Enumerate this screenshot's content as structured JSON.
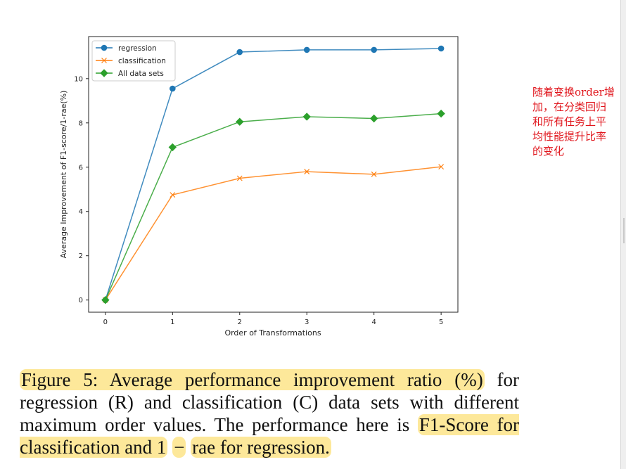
{
  "chart_data": {
    "type": "line",
    "x": [
      0,
      1,
      2,
      3,
      4,
      5
    ],
    "xticks": [
      "0",
      "1",
      "2",
      "3",
      "4",
      "5"
    ],
    "yticks": [
      "0",
      "2",
      "4",
      "6",
      "8",
      "10"
    ],
    "xlabel": "Order of Transformations",
    "ylabel": "Average Improvement of F1-score/1-rae(%)",
    "xlim": [
      -0.25,
      5.25
    ],
    "ylim": [
      -0.55,
      11.9
    ],
    "legend_position": "upper-left",
    "grid": false,
    "series": [
      {
        "name": "regression",
        "color": "#1f77b4",
        "marker": "circle",
        "values": [
          0,
          9.55,
          11.2,
          11.3,
          11.3,
          11.36
        ]
      },
      {
        "name": "classification",
        "color": "#ff7f0e",
        "marker": "x",
        "values": [
          0,
          4.75,
          5.5,
          5.8,
          5.68,
          6.02
        ]
      },
      {
        "name": "All data sets",
        "color": "#2ca02c",
        "marker": "diamond",
        "values": [
          0,
          6.9,
          8.05,
          8.28,
          8.2,
          8.42
        ]
      }
    ]
  },
  "annotation": "随着变换order增加，在分类回归和所有任务上平均性能提升比率的变化",
  "caption": {
    "p1": "Figure 5: Average performance improvement ratio (%)",
    "p2": " for regression (R) and classification (C) data sets with different maximum order values. The performance here is ",
    "p3": "F1-Score for classification and 1",
    "p4": " ",
    "p5": "−",
    "p6": " ",
    "p7": "rae for regression."
  }
}
